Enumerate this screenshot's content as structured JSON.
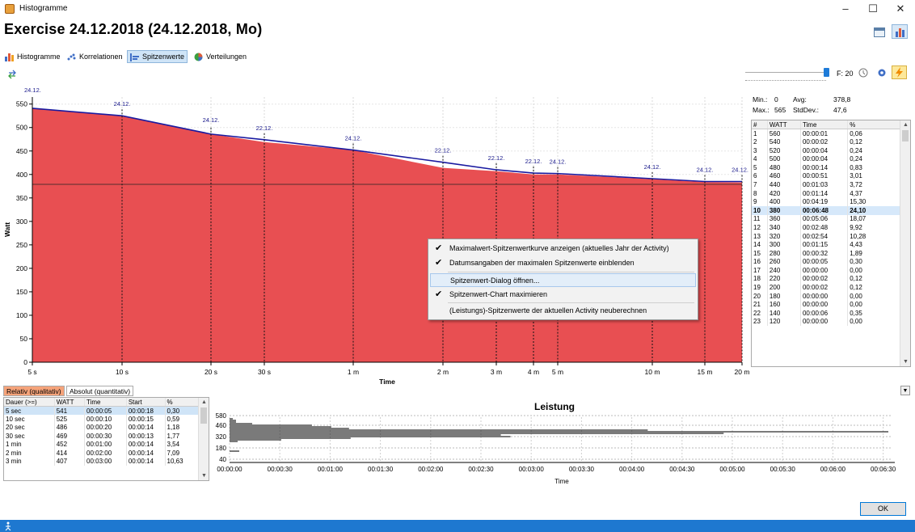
{
  "window": {
    "title": "Histogramme",
    "minimize": "–",
    "maximize": "☐",
    "close": "✕"
  },
  "heading": "Exercise 24.12.2018 (24.12.2018, Mo)",
  "tabs": [
    {
      "label": "Histogramme",
      "icon": "bar-chart-icon"
    },
    {
      "label": "Korrelationen",
      "icon": "scatter-icon"
    },
    {
      "label": "Spitzenwerte",
      "icon": "peak-chart-icon"
    },
    {
      "label": "Verteilungen",
      "icon": "pie-chart-icon"
    }
  ],
  "toolbar": {
    "filter": "F: 20"
  },
  "stats": {
    "min_label": "Min.:",
    "min": "0",
    "avg_label": "Avg:",
    "avg": "378,8",
    "max_label": "Max.:",
    "max": "565",
    "std_label": "StdDev.:",
    "std": "47,6"
  },
  "peak_table": {
    "headers": [
      "#",
      "WATT",
      "Time",
      "%"
    ],
    "rows": [
      [
        "1",
        "560",
        "00:00:01",
        "0,06"
      ],
      [
        "2",
        "540",
        "00:00:02",
        "0,12"
      ],
      [
        "3",
        "520",
        "00:00:04",
        "0,24"
      ],
      [
        "4",
        "500",
        "00:00:04",
        "0,24"
      ],
      [
        "5",
        "480",
        "00:00:14",
        "0,83"
      ],
      [
        "6",
        "460",
        "00:00:51",
        "3,01"
      ],
      [
        "7",
        "440",
        "00:01:03",
        "3,72"
      ],
      [
        "8",
        "420",
        "00:01:14",
        "4,37"
      ],
      [
        "9",
        "400",
        "00:04:19",
        "15,30"
      ],
      [
        "10",
        "380",
        "00:06:48",
        "24,10"
      ],
      [
        "11",
        "360",
        "00:05:06",
        "18,07"
      ],
      [
        "12",
        "340",
        "00:02:48",
        "9,92"
      ],
      [
        "13",
        "320",
        "00:02:54",
        "10,28"
      ],
      [
        "14",
        "300",
        "00:01:15",
        "4,43"
      ],
      [
        "15",
        "280",
        "00:00:32",
        "1,89"
      ],
      [
        "16",
        "260",
        "00:00:05",
        "0,30"
      ],
      [
        "17",
        "240",
        "00:00:00",
        "0,00"
      ],
      [
        "18",
        "220",
        "00:00:02",
        "0,12"
      ],
      [
        "19",
        "200",
        "00:00:02",
        "0,12"
      ],
      [
        "20",
        "180",
        "00:00:00",
        "0,00"
      ],
      [
        "21",
        "160",
        "00:00:00",
        "0,00"
      ],
      [
        "22",
        "140",
        "00:00:06",
        "0,35"
      ],
      [
        "23",
        "120",
        "00:00:00",
        "0,00"
      ]
    ],
    "selected_row": 9
  },
  "context_menu": [
    {
      "label": "Maximalwert-Spitzenwertkurve anzeigen (aktuelles Jahr der Activity)",
      "checked": true
    },
    {
      "label": "Datumsangaben der maximalen Spitzenwerte einblenden",
      "checked": true
    },
    {
      "label": "Spitzenwert-Dialog öffnen...",
      "checked": false,
      "highlighted": true
    },
    {
      "label": "Spitzenwert-Chart maximieren",
      "checked": true
    },
    {
      "label": "(Leistungs)-Spitzenwerte der aktuellen Activity neuberechnen",
      "checked": false
    }
  ],
  "bottom_tabs": {
    "relativ": "Relativ (qualitativ)",
    "absolut": "Absolut (quantitativ)"
  },
  "duration_table": {
    "headers": [
      "Dauer (>=)",
      "WATT",
      "Time",
      "Start",
      "%"
    ],
    "rows": [
      [
        "5 sec",
        "541",
        "00:00:05",
        "00:00:18",
        "0,30"
      ],
      [
        "10 sec",
        "525",
        "00:00:10",
        "00:00:15",
        "0,59"
      ],
      [
        "20 sec",
        "486",
        "00:00:20",
        "00:00:14",
        "1,18"
      ],
      [
        "30 sec",
        "469",
        "00:00:30",
        "00:00:13",
        "1,77"
      ],
      [
        "1 min",
        "452",
        "00:01:00",
        "00:00:14",
        "3,54"
      ],
      [
        "2 min",
        "414",
        "00:02:00",
        "00:00:14",
        "7,09"
      ],
      [
        "3 min",
        "407",
        "00:03:00",
        "00:00:14",
        "10,63"
      ]
    ],
    "selected_row": 0
  },
  "ok_label": "OK",
  "chart_data": [
    {
      "type": "area",
      "xlabel": "Time",
      "ylabel": "Watt",
      "x_ticks": [
        "5 s",
        "10 s",
        "20 s",
        "30 s",
        "1 m",
        "2 m",
        "3 m",
        "4 m",
        "5 m",
        "10 m",
        "15 m",
        "20 m"
      ],
      "x_seconds": [
        5,
        10,
        20,
        30,
        60,
        120,
        180,
        240,
        300,
        600,
        900,
        1200
      ],
      "y_ticks": [
        0,
        50,
        100,
        150,
        200,
        250,
        300,
        350,
        400,
        450,
        500,
        550
      ],
      "ylim": [
        0,
        565
      ],
      "series": [
        {
          "values_seconds": [
            5,
            10,
            20,
            30,
            60,
            120,
            180,
            240,
            300,
            600,
            900,
            1200
          ],
          "values": [
            541,
            525,
            486,
            469,
            452,
            414,
            407,
            400,
            400,
            390,
            384,
            383
          ]
        },
        {
          "name": "Maximalwert-Spitzenwertkurve",
          "values_seconds": [
            5,
            10,
            20,
            30,
            60,
            120,
            180,
            240,
            300,
            600,
            900,
            1200
          ],
          "values": [
            541,
            525,
            486,
            474,
            452,
            426,
            410,
            403,
            402,
            391,
            385,
            385
          ]
        }
      ],
      "average_line": 379,
      "date_labels": [
        {
          "x_seconds": 5,
          "text": "24.12."
        },
        {
          "x_seconds": 10,
          "text": "24.12."
        },
        {
          "x_seconds": 20,
          "text": "24.12."
        },
        {
          "x_seconds": 30,
          "text": "22.12."
        },
        {
          "x_seconds": 60,
          "text": "24.12."
        },
        {
          "x_seconds": 120,
          "text": "22.12."
        },
        {
          "x_seconds": 180,
          "text": "22.12."
        },
        {
          "x_seconds": 240,
          "text": "22.12."
        },
        {
          "x_seconds": 300,
          "text": "24.12."
        },
        {
          "x_seconds": 600,
          "text": "24.12."
        },
        {
          "x_seconds": 900,
          "text": "24.12."
        },
        {
          "x_seconds": 1200,
          "text": "24.12."
        }
      ],
      "colors": {
        "fill": "#e84f52",
        "max_line": "#1a1aa0",
        "avg_line": "#222222"
      }
    },
    {
      "type": "bar",
      "title": "Leistung",
      "xlabel": "Time",
      "x_ticks": [
        "00:00:00",
        "00:00:30",
        "00:01:00",
        "00:01:30",
        "00:02:00",
        "00:02:30",
        "00:03:00",
        "00:03:30",
        "00:04:00",
        "00:04:30",
        "00:05:00",
        "00:05:30",
        "00:06:00",
        "00:06:30"
      ],
      "y_ticks": [
        40,
        180,
        320,
        460,
        580
      ],
      "bars": [
        {
          "watt": 540,
          "seconds": 2
        },
        {
          "watt": 520,
          "seconds": 4
        },
        {
          "watt": 500,
          "seconds": 4
        },
        {
          "watt": 480,
          "seconds": 14
        },
        {
          "watt": 460,
          "seconds": 51
        },
        {
          "watt": 440,
          "seconds": 63
        },
        {
          "watt": 420,
          "seconds": 74
        },
        {
          "watt": 400,
          "seconds": 259
        },
        {
          "watt": 380,
          "seconds": 408
        },
        {
          "watt": 360,
          "seconds": 306
        },
        {
          "watt": 340,
          "seconds": 168
        },
        {
          "watt": 320,
          "seconds": 174
        },
        {
          "watt": 300,
          "seconds": 75
        },
        {
          "watt": 280,
          "seconds": 32
        },
        {
          "watt": 260,
          "seconds": 5
        },
        {
          "watt": 140,
          "seconds": 6
        }
      ]
    }
  ]
}
